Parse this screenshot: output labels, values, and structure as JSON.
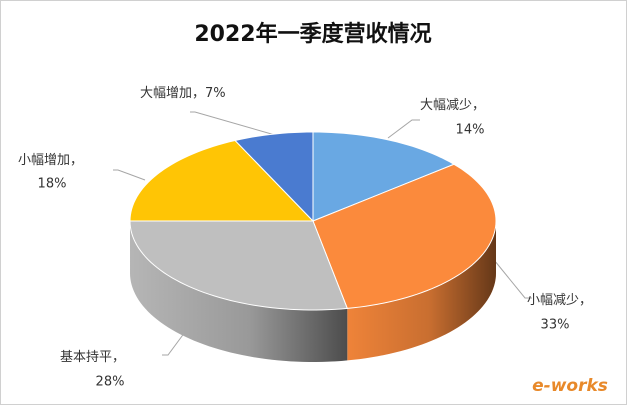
{
  "chart_data": {
    "type": "pie3d",
    "title": "2022年一季度营收情况",
    "categories": [
      "大幅减少",
      "小幅减少",
      "基本持平",
      "小幅增加",
      "大幅增加"
    ],
    "values": [
      14,
      33,
      28,
      18,
      7
    ],
    "value_labels": [
      "14%",
      "33%",
      "28%",
      "18%",
      "7%"
    ],
    "label_separator": "，",
    "colors": [
      "#69a8e3",
      "#fb8a3c",
      "#bfbfbf",
      "#ffc505",
      "#4a7bd0"
    ],
    "watermark": "e-works"
  }
}
